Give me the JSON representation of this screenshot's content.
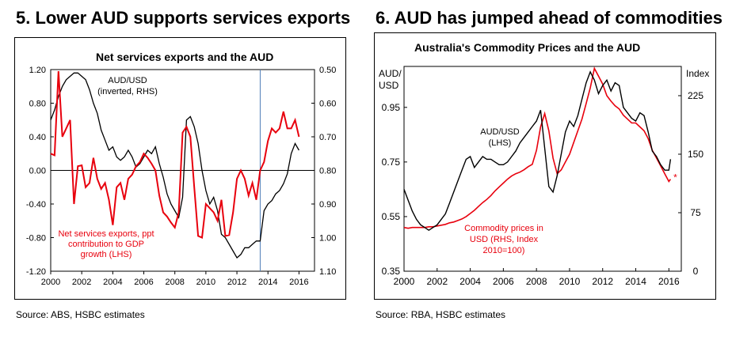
{
  "chart_data": [
    {
      "type": "line",
      "heading": "5. Lower AUD supports services exports",
      "title": "Net services exports and the AUD",
      "source": "Source: ABS, HSBC estimates",
      "x_ticks": [
        "2000",
        "2002",
        "2004",
        "2006",
        "2008",
        "2010",
        "2012",
        "2014",
        "2016"
      ],
      "xlim": [
        2000,
        2017
      ],
      "left_ticks": [
        "1.20",
        "0.80",
        "0.40",
        "0.00",
        "-0.40",
        "-0.80",
        "-1.20"
      ],
      "ylim_left": [
        -1.2,
        1.2
      ],
      "right_ticks": [
        "0.50",
        "0.60",
        "0.70",
        "0.80",
        "0.90",
        "1.00",
        "1.10"
      ],
      "ylim_right_inverted": [
        0.5,
        1.1
      ],
      "vline_x": 2013.5,
      "series": [
        {
          "name": "AUD/USD",
          "label_lines": [
            "AUD/USD",
            "(inverted, RHS)"
          ],
          "axis": "right",
          "color": "#000000",
          "x": [
            2000.0,
            2000.25,
            2000.5,
            2000.75,
            2001.0,
            2001.25,
            2001.5,
            2001.75,
            2002.0,
            2002.25,
            2002.5,
            2002.75,
            2003.0,
            2003.25,
            2003.5,
            2003.75,
            2004.0,
            2004.25,
            2004.5,
            2004.75,
            2005.0,
            2005.25,
            2005.5,
            2005.75,
            2006.0,
            2006.25,
            2006.5,
            2006.75,
            2007.0,
            2007.25,
            2007.5,
            2007.75,
            2008.0,
            2008.25,
            2008.5,
            2008.75,
            2009.0,
            2009.25,
            2009.5,
            2009.75,
            2010.0,
            2010.25,
            2010.5,
            2010.75,
            2011.0,
            2011.25,
            2011.5,
            2011.75,
            2012.0,
            2012.25,
            2012.5,
            2012.75,
            2013.0,
            2013.25,
            2013.5,
            2013.75,
            2014.0,
            2014.25,
            2014.5,
            2014.75,
            2015.0,
            2015.25,
            2015.5,
            2015.75,
            2016.0
          ],
          "values": [
            0.65,
            0.62,
            0.58,
            0.55,
            0.53,
            0.52,
            0.51,
            0.51,
            0.52,
            0.53,
            0.56,
            0.6,
            0.63,
            0.68,
            0.71,
            0.74,
            0.73,
            0.76,
            0.77,
            0.76,
            0.74,
            0.76,
            0.79,
            0.78,
            0.76,
            0.74,
            0.75,
            0.73,
            0.78,
            0.82,
            0.87,
            0.9,
            0.92,
            0.94,
            0.88,
            0.65,
            0.64,
            0.67,
            0.72,
            0.8,
            0.86,
            0.9,
            0.88,
            0.92,
            0.99,
            1.0,
            1.02,
            1.04,
            1.06,
            1.05,
            1.03,
            1.03,
            1.02,
            1.01,
            1.01,
            0.92,
            0.9,
            0.89,
            0.87,
            0.86,
            0.84,
            0.81,
            0.75,
            0.72,
            0.74
          ]
        },
        {
          "name": "Net services exports, ppt contribution to GDP growth",
          "label_lines": [
            "Net services exports, ppt",
            "contribution to GDP",
            "growth (LHS)"
          ],
          "axis": "left",
          "color": "#e8000d",
          "x": [
            2000.0,
            2000.25,
            2000.5,
            2000.75,
            2001.0,
            2001.25,
            2001.5,
            2001.75,
            2002.0,
            2002.25,
            2002.5,
            2002.75,
            2003.0,
            2003.25,
            2003.5,
            2003.75,
            2004.0,
            2004.25,
            2004.5,
            2004.75,
            2005.0,
            2005.25,
            2005.5,
            2005.75,
            2006.0,
            2006.25,
            2006.5,
            2006.75,
            2007.0,
            2007.25,
            2007.5,
            2007.75,
            2008.0,
            2008.25,
            2008.5,
            2008.75,
            2009.0,
            2009.25,
            2009.5,
            2009.75,
            2010.0,
            2010.25,
            2010.5,
            2010.75,
            2011.0,
            2011.25,
            2011.5,
            2011.75,
            2012.0,
            2012.25,
            2012.5,
            2012.75,
            2013.0,
            2013.25,
            2013.5,
            2013.75,
            2014.0,
            2014.25,
            2014.5,
            2014.75,
            2015.0,
            2015.25,
            2015.5,
            2015.75,
            2016.0
          ],
          "values": [
            0.2,
            0.18,
            1.18,
            0.4,
            0.5,
            0.6,
            -0.4,
            0.05,
            0.06,
            -0.2,
            -0.15,
            0.15,
            -0.1,
            -0.22,
            -0.15,
            -0.35,
            -0.65,
            -0.2,
            -0.15,
            -0.35,
            -0.1,
            -0.05,
            0.05,
            0.1,
            0.2,
            0.15,
            0.08,
            0.0,
            -0.3,
            -0.5,
            -0.55,
            -0.62,
            -0.68,
            -0.5,
            0.45,
            0.52,
            0.4,
            -0.2,
            -0.78,
            -0.8,
            -0.4,
            -0.45,
            -0.5,
            -0.6,
            -0.35,
            -0.78,
            -0.77,
            -0.5,
            -0.1,
            0.0,
            -0.1,
            -0.3,
            -0.15,
            -0.35,
            0.0,
            0.1,
            0.35,
            0.5,
            0.45,
            0.5,
            0.7,
            0.5,
            0.5,
            0.6,
            0.4
          ]
        }
      ]
    },
    {
      "type": "line",
      "heading": "6. AUD has jumped ahead of commodities",
      "title": "Australia's Commodity Prices and the AUD",
      "source": "Source: RBA, HSBC estimates",
      "x_ticks": [
        "2000",
        "2002",
        "2004",
        "2006",
        "2008",
        "2010",
        "2012",
        "2014",
        "2016"
      ],
      "xlim": [
        2000,
        2016.75
      ],
      "left_axis_label_lines": [
        "AUD/",
        "USD"
      ],
      "right_axis_label": "Index",
      "left_ticks": [
        "0.95",
        "0.75",
        "0.55",
        "0.35"
      ],
      "ylim_left": [
        0.35,
        1.1
      ],
      "right_ticks": [
        "225",
        "150",
        "75",
        "0"
      ],
      "ylim_right": [
        0,
        262.5
      ],
      "series": [
        {
          "name": "AUD/USD",
          "label_lines": [
            "AUD/USD",
            "(LHS)"
          ],
          "axis": "left",
          "color": "#000000",
          "x": [
            2000.0,
            2000.25,
            2000.5,
            2000.75,
            2001.0,
            2001.25,
            2001.5,
            2001.75,
            2002.0,
            2002.25,
            2002.5,
            2002.75,
            2003.0,
            2003.25,
            2003.5,
            2003.75,
            2004.0,
            2004.25,
            2004.5,
            2004.75,
            2005.0,
            2005.25,
            2005.5,
            2005.75,
            2006.0,
            2006.25,
            2006.5,
            2006.75,
            2007.0,
            2007.25,
            2007.5,
            2007.75,
            2008.0,
            2008.25,
            2008.5,
            2008.75,
            2009.0,
            2009.25,
            2009.5,
            2009.75,
            2010.0,
            2010.25,
            2010.5,
            2010.75,
            2011.0,
            2011.25,
            2011.5,
            2011.75,
            2012.0,
            2012.25,
            2012.5,
            2012.75,
            2013.0,
            2013.25,
            2013.5,
            2013.75,
            2014.0,
            2014.25,
            2014.5,
            2014.75,
            2015.0,
            2015.25,
            2015.5,
            2015.75,
            2016.0,
            2016.1
          ],
          "values": [
            0.65,
            0.61,
            0.57,
            0.54,
            0.52,
            0.51,
            0.5,
            0.51,
            0.52,
            0.54,
            0.56,
            0.6,
            0.64,
            0.68,
            0.72,
            0.76,
            0.77,
            0.73,
            0.75,
            0.77,
            0.76,
            0.76,
            0.75,
            0.74,
            0.74,
            0.75,
            0.77,
            0.79,
            0.82,
            0.84,
            0.86,
            0.88,
            0.9,
            0.94,
            0.8,
            0.66,
            0.64,
            0.7,
            0.78,
            0.86,
            0.9,
            0.88,
            0.92,
            0.98,
            1.04,
            1.08,
            1.05,
            1.0,
            1.03,
            1.05,
            1.01,
            1.04,
            1.03,
            0.95,
            0.93,
            0.91,
            0.9,
            0.93,
            0.92,
            0.86,
            0.79,
            0.77,
            0.74,
            0.72,
            0.72,
            0.76
          ]
        },
        {
          "name": "Commodity prices in USD (RHS, Index 2010=100)",
          "label_lines": [
            "Commodity prices in",
            "USD (RHS, Index",
            "2010=100)"
          ],
          "axis": "right",
          "color": "#e8000d",
          "marker_last": "*",
          "x": [
            2000.0,
            2000.25,
            2000.5,
            2000.75,
            2001.0,
            2001.25,
            2001.5,
            2001.75,
            2002.0,
            2002.25,
            2002.5,
            2002.75,
            2003.0,
            2003.25,
            2003.5,
            2003.75,
            2004.0,
            2004.25,
            2004.5,
            2004.75,
            2005.0,
            2005.25,
            2005.5,
            2005.75,
            2006.0,
            2006.25,
            2006.5,
            2006.75,
            2007.0,
            2007.25,
            2007.5,
            2007.75,
            2008.0,
            2008.25,
            2008.5,
            2008.75,
            2009.0,
            2009.25,
            2009.5,
            2009.75,
            2010.0,
            2010.25,
            2010.5,
            2010.75,
            2011.0,
            2011.25,
            2011.5,
            2011.75,
            2012.0,
            2012.25,
            2012.5,
            2012.75,
            2013.0,
            2013.25,
            2013.5,
            2013.75,
            2014.0,
            2014.25,
            2014.5,
            2014.75,
            2015.0,
            2015.25,
            2015.5,
            2015.75,
            2016.0,
            2016.1
          ],
          "values": [
            56,
            55,
            56,
            56,
            56,
            56,
            57,
            57,
            58,
            59,
            60,
            62,
            63,
            65,
            67,
            70,
            74,
            78,
            83,
            88,
            92,
            97,
            103,
            108,
            113,
            118,
            122,
            125,
            127,
            130,
            134,
            137,
            155,
            185,
            202,
            180,
            145,
            125,
            130,
            140,
            150,
            165,
            180,
            195,
            215,
            235,
            260,
            250,
            240,
            225,
            218,
            212,
            208,
            200,
            195,
            190,
            190,
            185,
            180,
            170,
            155,
            145,
            135,
            125,
            115,
            118
          ]
        }
      ]
    }
  ]
}
